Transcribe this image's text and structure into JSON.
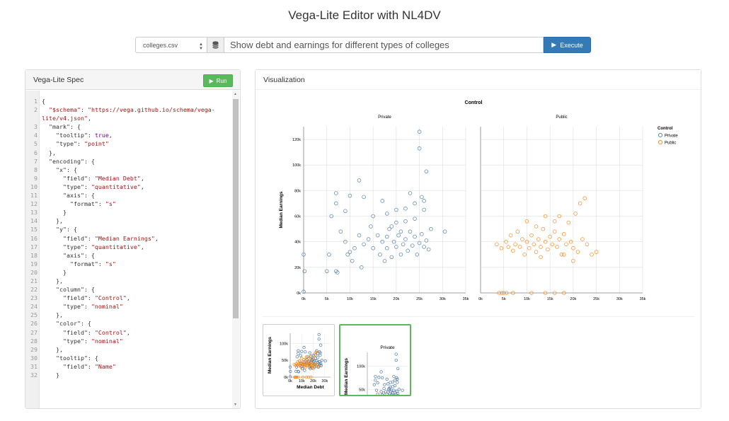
{
  "page": {
    "title": "Vega-Lite Editor with NL4DV"
  },
  "querybar": {
    "dataset": "colleges.csv",
    "query": "Show debt and earnings for different types of colleges",
    "execute_label": "Execute"
  },
  "spec_panel": {
    "title": "Vega-Lite Spec",
    "run_label": "Run",
    "lines": [
      [
        {
          "c": "k",
          "v": "{"
        }
      ],
      [
        {
          "c": "k",
          "v": "  "
        },
        {
          "c": "s",
          "v": "\"$schema\""
        },
        {
          "c": "k",
          "v": ": "
        },
        {
          "c": "s",
          "v": "\"https://vega.github.io/schema/vega-"
        }
      ],
      [
        {
          "c": "s",
          "v": "lite/v4.json\""
        },
        {
          "c": "k",
          "v": ","
        }
      ],
      [
        {
          "c": "k",
          "v": "  \"mark\": {"
        }
      ],
      [
        {
          "c": "k",
          "v": "    \"tooltip\": "
        },
        {
          "c": "b",
          "v": "true"
        },
        {
          "c": "k",
          "v": ","
        }
      ],
      [
        {
          "c": "k",
          "v": "    \"type\": "
        },
        {
          "c": "s",
          "v": "\"point\""
        }
      ],
      [
        {
          "c": "k",
          "v": "  },"
        }
      ],
      [
        {
          "c": "k",
          "v": "  \"encoding\": {"
        }
      ],
      [
        {
          "c": "k",
          "v": "    \"x\": {"
        }
      ],
      [
        {
          "c": "k",
          "v": "      \"field\": "
        },
        {
          "c": "s",
          "v": "\"Median Debt\""
        },
        {
          "c": "k",
          "v": ","
        }
      ],
      [
        {
          "c": "k",
          "v": "      \"type\": "
        },
        {
          "c": "s",
          "v": "\"quantitative\""
        },
        {
          "c": "k",
          "v": ","
        }
      ],
      [
        {
          "c": "k",
          "v": "      \"axis\": {"
        }
      ],
      [
        {
          "c": "k",
          "v": "        \"format\": "
        },
        {
          "c": "s",
          "v": "\"s\""
        }
      ],
      [
        {
          "c": "k",
          "v": "      }"
        }
      ],
      [
        {
          "c": "k",
          "v": "    },"
        }
      ],
      [
        {
          "c": "k",
          "v": "    \"y\": {"
        }
      ],
      [
        {
          "c": "k",
          "v": "      \"field\": "
        },
        {
          "c": "s",
          "v": "\"Median Earnings\""
        },
        {
          "c": "k",
          "v": ","
        }
      ],
      [
        {
          "c": "k",
          "v": "      \"type\": "
        },
        {
          "c": "s",
          "v": "\"quantitative\""
        },
        {
          "c": "k",
          "v": ","
        }
      ],
      [
        {
          "c": "k",
          "v": "      \"axis\": {"
        }
      ],
      [
        {
          "c": "k",
          "v": "        \"format\": "
        },
        {
          "c": "s",
          "v": "\"s\""
        }
      ],
      [
        {
          "c": "k",
          "v": "      }"
        }
      ],
      [
        {
          "c": "k",
          "v": "    },"
        }
      ],
      [
        {
          "c": "k",
          "v": "    \"column\": {"
        }
      ],
      [
        {
          "c": "k",
          "v": "      \"field\": "
        },
        {
          "c": "s",
          "v": "\"Control\""
        },
        {
          "c": "k",
          "v": ","
        }
      ],
      [
        {
          "c": "k",
          "v": "      \"type\": "
        },
        {
          "c": "s",
          "v": "\"nominal\""
        }
      ],
      [
        {
          "c": "k",
          "v": "    },"
        }
      ],
      [
        {
          "c": "k",
          "v": "    \"color\": {"
        }
      ],
      [
        {
          "c": "k",
          "v": "      \"field\": "
        },
        {
          "c": "s",
          "v": "\"Control\""
        },
        {
          "c": "k",
          "v": ","
        }
      ],
      [
        {
          "c": "k",
          "v": "      \"type\": "
        },
        {
          "c": "s",
          "v": "\"nominal\""
        }
      ],
      [
        {
          "c": "k",
          "v": "    },"
        }
      ],
      [
        {
          "c": "k",
          "v": "    \"tooltip\": {"
        }
      ],
      [
        {
          "c": "k",
          "v": "      \"field\": "
        },
        {
          "c": "s",
          "v": "\"Name\""
        }
      ],
      [
        {
          "c": "k",
          "v": "    }"
        }
      ]
    ],
    "line_numbers": [
      "1",
      "2",
      "",
      "3",
      "4",
      "5",
      "6",
      "7",
      "8",
      "9",
      "10",
      "11",
      "12",
      "13",
      "14",
      "15",
      "16",
      "17",
      "18",
      "19",
      "20",
      "21",
      "22",
      "23",
      "24",
      "25",
      "26",
      "27",
      "28",
      "29",
      "30",
      "31",
      "32"
    ]
  },
  "vis_panel": {
    "title": "Visualization"
  },
  "colors": {
    "private": "#4c78a8",
    "public": "#f58518"
  },
  "icons": {
    "dataset": "database-icon",
    "execute": "play-icon",
    "run": "play-icon"
  },
  "chart_data": [
    {
      "type": "scatter",
      "title": "Control",
      "facets": [
        "Private",
        "Public"
      ],
      "xlabel": "",
      "ylabel": "Median Earnings",
      "xlim": [
        0,
        35000
      ],
      "ylim": [
        0,
        130000
      ],
      "xticks": [
        "0k",
        "5k",
        "10k",
        "15k",
        "20k",
        "25k",
        "30k",
        "35k"
      ],
      "yticks": [
        "0k",
        "20k",
        "40k",
        "60k",
        "80k",
        "100k",
        "120k"
      ],
      "legend": {
        "title": "Control",
        "entries": [
          "Private",
          "Public"
        ],
        "position": "right"
      },
      "grid": true,
      "series": [
        {
          "name": "Private",
          "color": "#4c78a8",
          "points": [
            [
              0,
              1000
            ],
            [
              0,
              30000
            ],
            [
              200,
              17000
            ],
            [
              5000,
              17000
            ],
            [
              7000,
              17000
            ],
            [
              7300,
              16000
            ],
            [
              5500,
              30000
            ],
            [
              6000,
              60000
            ],
            [
              7000,
              70000
            ],
            [
              7000,
              78000
            ],
            [
              9000,
              64000
            ],
            [
              12000,
              88000
            ],
            [
              10000,
              76000
            ],
            [
              13000,
              75000
            ],
            [
              15000,
              60000
            ],
            [
              14500,
              52000
            ],
            [
              17000,
              72000
            ],
            [
              18000,
              62000
            ],
            [
              20000,
              65000
            ],
            [
              22000,
              66000
            ],
            [
              23000,
              78000
            ],
            [
              24000,
              70000
            ],
            [
              25500,
              75000
            ],
            [
              26000,
              72000
            ],
            [
              26500,
              95000
            ],
            [
              25000,
              126000
            ],
            [
              25000,
              113000
            ],
            [
              26000,
              65000
            ],
            [
              27500,
              50000
            ],
            [
              30500,
              48000
            ],
            [
              8000,
              48000
            ],
            [
              9000,
              40000
            ],
            [
              9500,
              30000
            ],
            [
              10500,
              25000
            ],
            [
              12000,
              45000
            ],
            [
              13000,
              38000
            ],
            [
              14000,
              42000
            ],
            [
              15000,
              35000
            ],
            [
              16000,
              45000
            ],
            [
              16500,
              30000
            ],
            [
              17000,
              40000
            ],
            [
              17500,
              25000
            ],
            [
              18000,
              35000
            ],
            [
              18500,
              50000
            ],
            [
              19000,
              28000
            ],
            [
              19500,
              40000
            ],
            [
              20000,
              36000
            ],
            [
              20500,
              45000
            ],
            [
              21000,
              30000
            ],
            [
              21500,
              38000
            ],
            [
              22000,
              42000
            ],
            [
              22500,
              33000
            ],
            [
              23000,
              48000
            ],
            [
              23500,
              37000
            ],
            [
              24000,
              44000
            ],
            [
              24500,
              30000
            ],
            [
              25000,
              39000
            ],
            [
              25500,
              46000
            ],
            [
              26000,
              36000
            ],
            [
              26500,
              41000
            ],
            [
              27000,
              34000
            ],
            [
              11000,
              35000
            ],
            [
              10000,
              32000
            ],
            [
              12500,
              20000
            ],
            [
              20000,
              55000
            ],
            [
              22000,
              56000
            ],
            [
              24000,
              58000
            ],
            [
              19000,
              52000
            ],
            [
              21000,
              48000
            ],
            [
              18000,
              44000
            ]
          ]
        },
        {
          "name": "Public",
          "color": "#f58518",
          "points": [
            [
              4000,
              0
            ],
            [
              4600,
              0
            ],
            [
              5000,
              0
            ],
            [
              5600,
              0
            ],
            [
              7000,
              0
            ],
            [
              11000,
              0
            ],
            [
              14000,
              0
            ],
            [
              16000,
              0
            ],
            [
              18000,
              0
            ],
            [
              3500,
              38000
            ],
            [
              4500,
              35000
            ],
            [
              5500,
              40000
            ],
            [
              6500,
              45000
            ],
            [
              7000,
              33000
            ],
            [
              7500,
              38000
            ],
            [
              8000,
              48000
            ],
            [
              8500,
              36000
            ],
            [
              9000,
              42000
            ],
            [
              9500,
              30000
            ],
            [
              10000,
              40000
            ],
            [
              10500,
              35000
            ],
            [
              11000,
              45000
            ],
            [
              11500,
              38000
            ],
            [
              12000,
              32000
            ],
            [
              12500,
              42000
            ],
            [
              13000,
              36000
            ],
            [
              13500,
              50000
            ],
            [
              14000,
              40000
            ],
            [
              14500,
              34000
            ],
            [
              15000,
              44000
            ],
            [
              15500,
              38000
            ],
            [
              16000,
              48000
            ],
            [
              16500,
              36000
            ],
            [
              17000,
              42000
            ],
            [
              17500,
              30000
            ],
            [
              18000,
              46000
            ],
            [
              18500,
              38000
            ],
            [
              19000,
              55000
            ],
            [
              19500,
              40000
            ],
            [
              20000,
              35000
            ],
            [
              20500,
              62000
            ],
            [
              21000,
              32000
            ],
            [
              21500,
              70000
            ],
            [
              22000,
              42000
            ],
            [
              22500,
              74000
            ],
            [
              23000,
              38000
            ],
            [
              24000,
              30000
            ],
            [
              25000,
              32000
            ],
            [
              6000,
              36000
            ],
            [
              10000,
              56000
            ],
            [
              12000,
              52000
            ],
            [
              14000,
              60000
            ],
            [
              16000,
              56000
            ],
            [
              18000,
              30000
            ],
            [
              20000,
              25000
            ],
            [
              17000,
              60000
            ],
            [
              13000,
              28000
            ]
          ]
        }
      ]
    },
    {
      "type": "scatter",
      "xlabel": "Median Debt",
      "ylabel": "Median Earnings",
      "xticks": [
        "0k",
        "10k",
        "20k",
        "30k"
      ],
      "yticks": [
        "0k",
        "50k",
        "100k"
      ],
      "xlim": [
        0,
        35000
      ],
      "ylim": [
        0,
        130000
      ]
    },
    {
      "type": "scatter",
      "title": "Private",
      "ylabel": "Median Earnings",
      "yticks": [
        "50k",
        "100k"
      ],
      "xlim": [
        0,
        35000
      ],
      "ylim": [
        0,
        130000
      ]
    }
  ]
}
